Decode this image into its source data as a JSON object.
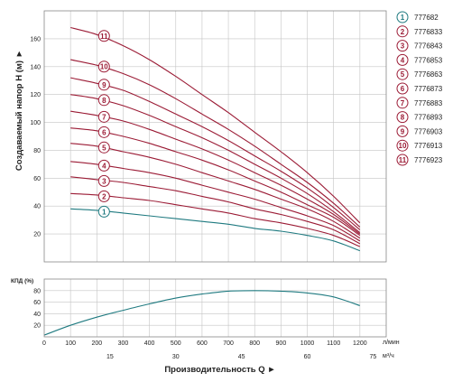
{
  "chart_data": [
    {
      "type": "line",
      "ylabel": "Создаваемый напор H (м) ►",
      "xlabel": "Производительность Q ►",
      "xlim": [
        0,
        1300
      ],
      "ylim": [
        0,
        180
      ],
      "yticks": [
        20,
        40,
        60,
        80,
        100,
        120,
        140,
        160
      ],
      "x_unit_lmin": "л/мин",
      "x_unit_m3h": "м³/ч",
      "x_ticks_lmin": [
        "0",
        "100",
        "200",
        "300",
        "400",
        "500",
        "600",
        "700",
        "800",
        "900",
        "1000",
        "1100",
        "1200"
      ],
      "x_ticks_m3h": [
        {
          "label": "15",
          "pos": 250
        },
        {
          "label": "30",
          "pos": 500
        },
        {
          "label": "45",
          "pos": 750
        },
        {
          "label": "60",
          "pos": 1000
        },
        {
          "label": "75",
          "pos": 1250
        }
      ],
      "grid": true,
      "legend_position": "right",
      "series": [
        {
          "name": "777682",
          "marker": "1",
          "color": "#1f7a80",
          "x": [
            100,
            200,
            300,
            400,
            500,
            600,
            700,
            800,
            900,
            1000,
            1100,
            1200
          ],
          "values": [
            38,
            37,
            35,
            33,
            31,
            29,
            27,
            24,
            22,
            19,
            15,
            8
          ]
        },
        {
          "name": "7776833",
          "marker": "2",
          "color": "#9b1b35",
          "x": [
            100,
            200,
            300,
            400,
            500,
            600,
            700,
            800,
            900,
            1000,
            1100,
            1200
          ],
          "values": [
            49,
            48,
            46,
            44,
            41,
            38,
            35,
            31,
            28,
            24,
            19,
            11
          ]
        },
        {
          "name": "7776843",
          "marker": "3",
          "color": "#9b1b35",
          "x": [
            100,
            200,
            300,
            400,
            500,
            600,
            700,
            800,
            900,
            1000,
            1100,
            1200
          ],
          "values": [
            61,
            59,
            57,
            54,
            51,
            47,
            43,
            38,
            34,
            29,
            23,
            13
          ]
        },
        {
          "name": "7776853",
          "marker": "4",
          "color": "#9b1b35",
          "x": [
            100,
            200,
            300,
            400,
            500,
            600,
            700,
            800,
            900,
            1000,
            1100,
            1200
          ],
          "values": [
            72,
            70,
            67,
            64,
            60,
            55,
            50,
            45,
            39,
            33,
            26,
            15
          ]
        },
        {
          "name": "7776863",
          "marker": "5",
          "color": "#9b1b35",
          "x": [
            100,
            200,
            300,
            400,
            500,
            600,
            700,
            800,
            900,
            1000,
            1100,
            1200
          ],
          "values": [
            85,
            83,
            79,
            75,
            70,
            64,
            58,
            52,
            45,
            38,
            29,
            17
          ]
        },
        {
          "name": "7776873",
          "marker": "6",
          "color": "#9b1b35",
          "x": [
            100,
            200,
            300,
            400,
            500,
            600,
            700,
            800,
            900,
            1000,
            1100,
            1200
          ],
          "values": [
            96,
            94,
            90,
            85,
            79,
            73,
            66,
            58,
            50,
            41,
            32,
            19
          ]
        },
        {
          "name": "7776883",
          "marker": "7",
          "color": "#9b1b35",
          "x": [
            100,
            200,
            300,
            400,
            500,
            600,
            700,
            800,
            900,
            1000,
            1100,
            1200
          ],
          "values": [
            108,
            105,
            101,
            95,
            88,
            81,
            73,
            64,
            55,
            45,
            34,
            20
          ]
        },
        {
          "name": "7776893",
          "marker": "8",
          "color": "#9b1b35",
          "x": [
            100,
            200,
            300,
            400,
            500,
            600,
            700,
            800,
            900,
            1000,
            1100,
            1200
          ],
          "values": [
            120,
            117,
            112,
            105,
            97,
            89,
            80,
            70,
            60,
            49,
            36,
            21
          ]
        },
        {
          "name": "7776903",
          "marker": "9",
          "color": "#9b1b35",
          "x": [
            100,
            200,
            300,
            400,
            500,
            600,
            700,
            800,
            900,
            1000,
            1100,
            1200
          ],
          "values": [
            132,
            128,
            123,
            115,
            106,
            97,
            87,
            76,
            65,
            53,
            39,
            23
          ]
        },
        {
          "name": "7776913",
          "marker": "10",
          "color": "#9b1b35",
          "x": [
            100,
            200,
            300,
            400,
            500,
            600,
            700,
            800,
            900,
            1000,
            1100,
            1200
          ],
          "values": [
            145,
            141,
            135,
            127,
            117,
            106,
            95,
            83,
            70,
            57,
            42,
            25
          ]
        },
        {
          "name": "7776923",
          "marker": "11",
          "color": "#9b1b35",
          "x": [
            100,
            200,
            300,
            400,
            500,
            600,
            700,
            800,
            900,
            1000,
            1100,
            1200
          ],
          "values": [
            168,
            163,
            155,
            145,
            133,
            120,
            107,
            93,
            79,
            64,
            47,
            28
          ]
        }
      ]
    },
    {
      "type": "line",
      "ylabel": "КПД (%)",
      "xlim": [
        0,
        1300
      ],
      "ylim": [
        0,
        100
      ],
      "yticks": [
        20,
        40,
        60,
        80
      ],
      "grid": true,
      "series": [
        {
          "color": "#1f7a80",
          "x": [
            0,
            100,
            200,
            300,
            400,
            500,
            600,
            700,
            800,
            900,
            1000,
            1100,
            1200
          ],
          "values": [
            3,
            20,
            34,
            46,
            57,
            67,
            74,
            79,
            80,
            79,
            76,
            69,
            54
          ]
        }
      ]
    }
  ]
}
